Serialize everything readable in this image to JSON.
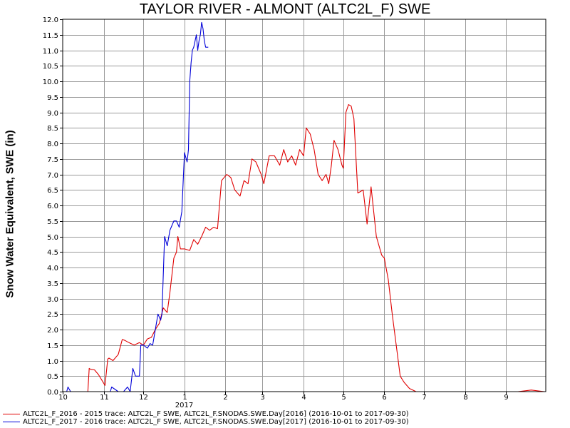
{
  "chart_data": {
    "type": "line",
    "title": "TAYLOR RIVER - ALMONT (ALTC2L_F) SWE",
    "ylabel": "Snow Water Equivalent, SWE (in)",
    "xlabel": "",
    "ylim": [
      0,
      12
    ],
    "yticks": [
      "0.0",
      "0.5",
      "1.0",
      "1.5",
      "2.0",
      "2.5",
      "3.0",
      "3.5",
      "4.0",
      "4.5",
      "5.0",
      "5.5",
      "6.0",
      "6.5",
      "7.0",
      "7.5",
      "8.0",
      "8.5",
      "9.0",
      "9.5",
      "10.0",
      "10.5",
      "11.0",
      "11.5",
      "12.0"
    ],
    "xticks": [
      "10",
      "11",
      "12",
      "1",
      "2",
      "3",
      "4",
      "5",
      "6",
      "7",
      "8",
      "9"
    ],
    "year_label": "2017",
    "grid": true,
    "legend_position": "bottom",
    "series": [
      {
        "name": "ALTC2L_F_2016 - 2015 trace: ALTC2L_F SWE, ALTC2L_F.SNODAS.SWE.Day[2016] (2016-10-01 to 2017-09-30)",
        "color": "#e00000",
        "x": [
          "2016-10-01",
          "2016-10-20",
          "2016-10-21",
          "2016-10-22",
          "2016-10-25",
          "2016-10-28",
          "2016-11-02",
          "2016-11-04",
          "2016-11-05",
          "2016-11-08",
          "2016-11-12",
          "2016-11-15",
          "2016-11-17",
          "2016-11-20",
          "2016-11-24",
          "2016-11-28",
          "2016-12-01",
          "2016-12-04",
          "2016-12-07",
          "2016-12-10",
          "2016-12-13",
          "2016-12-16",
          "2016-12-19",
          "2016-12-21",
          "2016-12-24",
          "2016-12-26",
          "2016-12-27",
          "2016-12-29",
          "2017-01-01",
          "2017-01-05",
          "2017-01-08",
          "2017-01-11",
          "2017-01-14",
          "2017-01-17",
          "2017-01-20",
          "2017-01-23",
          "2017-01-26",
          "2017-01-29",
          "2017-02-02",
          "2017-02-05",
          "2017-02-08",
          "2017-02-12",
          "2017-02-15",
          "2017-02-18",
          "2017-02-21",
          "2017-02-24",
          "2017-02-28",
          "2017-03-02",
          "2017-03-06",
          "2017-03-10",
          "2017-03-14",
          "2017-03-17",
          "2017-03-20",
          "2017-03-23",
          "2017-03-26",
          "2017-03-29",
          "2017-04-01",
          "2017-04-03",
          "2017-04-06",
          "2017-04-09",
          "2017-04-12",
          "2017-04-15",
          "2017-04-18",
          "2017-04-20",
          "2017-04-22",
          "2017-04-24",
          "2017-04-27",
          "2017-04-30",
          "2017-05-01",
          "2017-05-03",
          "2017-05-05",
          "2017-05-07",
          "2017-05-09",
          "2017-05-12",
          "2017-05-16",
          "2017-05-19",
          "2017-05-22",
          "2017-05-26",
          "2017-05-30",
          "2017-06-01",
          "2017-06-04",
          "2017-06-07",
          "2017-06-10",
          "2017-06-13",
          "2017-06-16",
          "2017-06-20",
          "2017-06-25",
          "2017-07-01",
          "2017-07-04",
          "2017-09-10",
          "2017-09-20",
          "2017-09-30"
        ],
        "y": [
          0,
          0,
          0.75,
          0.72,
          0.7,
          0.55,
          0.2,
          1.05,
          1.08,
          1.0,
          1.2,
          1.68,
          1.65,
          1.58,
          1.5,
          1.58,
          1.5,
          1.7,
          1.75,
          2.0,
          2.2,
          2.7,
          2.55,
          3.2,
          4.3,
          4.5,
          5.0,
          4.6,
          4.6,
          4.55,
          4.9,
          4.75,
          5.0,
          5.3,
          5.2,
          5.3,
          5.25,
          6.8,
          7.0,
          6.9,
          6.5,
          6.3,
          6.8,
          6.7,
          7.5,
          7.4,
          7.0,
          6.7,
          7.6,
          7.6,
          7.3,
          7.8,
          7.4,
          7.6,
          7.3,
          7.8,
          7.6,
          8.5,
          8.3,
          7.8,
          7.0,
          6.8,
          7.0,
          6.7,
          7.3,
          8.1,
          7.8,
          7.3,
          7.2,
          9.0,
          9.25,
          9.2,
          8.8,
          6.4,
          6.5,
          5.4,
          6.6,
          5.0,
          4.4,
          4.3,
          3.6,
          2.5,
          1.5,
          0.5,
          0.3,
          0.1,
          0,
          0,
          0,
          0,
          0.05,
          0
        ]
      },
      {
        "name": "ALTC2L_F_2017 - 2016 trace: ALTC2L_F SWE, ALTC2L_F.SNODAS.SWE.Day[2017] (2016-10-01 to 2017-09-30)",
        "color": "#0000d8",
        "x": [
          "2016-10-01",
          "2016-10-04",
          "2016-10-05",
          "2016-10-07",
          "2016-11-06",
          "2016-11-07",
          "2016-11-12",
          "2016-11-13",
          "2016-11-16",
          "2016-11-19",
          "2016-11-21",
          "2016-11-23",
          "2016-11-25",
          "2016-11-26",
          "2016-11-28",
          "2016-11-29",
          "2016-11-30",
          "2016-12-01",
          "2016-12-04",
          "2016-12-06",
          "2016-12-08",
          "2016-12-10",
          "2016-12-12",
          "2016-12-14",
          "2016-12-15",
          "2016-12-17",
          "2016-12-19",
          "2016-12-21",
          "2016-12-22",
          "2016-12-24",
          "2016-12-26",
          "2016-12-28",
          "2016-12-30",
          "2017-01-01",
          "2017-01-03",
          "2017-01-04",
          "2017-01-05",
          "2017-01-06",
          "2017-01-07",
          "2017-01-08",
          "2017-01-10",
          "2017-01-11",
          "2017-01-12",
          "2017-01-13",
          "2017-01-14",
          "2017-01-15",
          "2017-01-16",
          "2017-01-17",
          "2017-01-18",
          "2017-01-19"
        ],
        "y": [
          0,
          0,
          0.15,
          0,
          0,
          0.15,
          0,
          0,
          0,
          0.15,
          0,
          0.75,
          0.5,
          0.5,
          0.5,
          1.5,
          1.5,
          1.5,
          1.4,
          1.55,
          1.5,
          2.0,
          2.5,
          2.3,
          2.5,
          5.0,
          4.7,
          5.2,
          5.3,
          5.5,
          5.5,
          5.3,
          5.8,
          7.7,
          7.4,
          7.8,
          10.0,
          10.6,
          11.0,
          11.1,
          11.5,
          11.0,
          11.3,
          11.5,
          11.9,
          11.7,
          11.3,
          11.1,
          11.1,
          11.1
        ]
      }
    ]
  }
}
